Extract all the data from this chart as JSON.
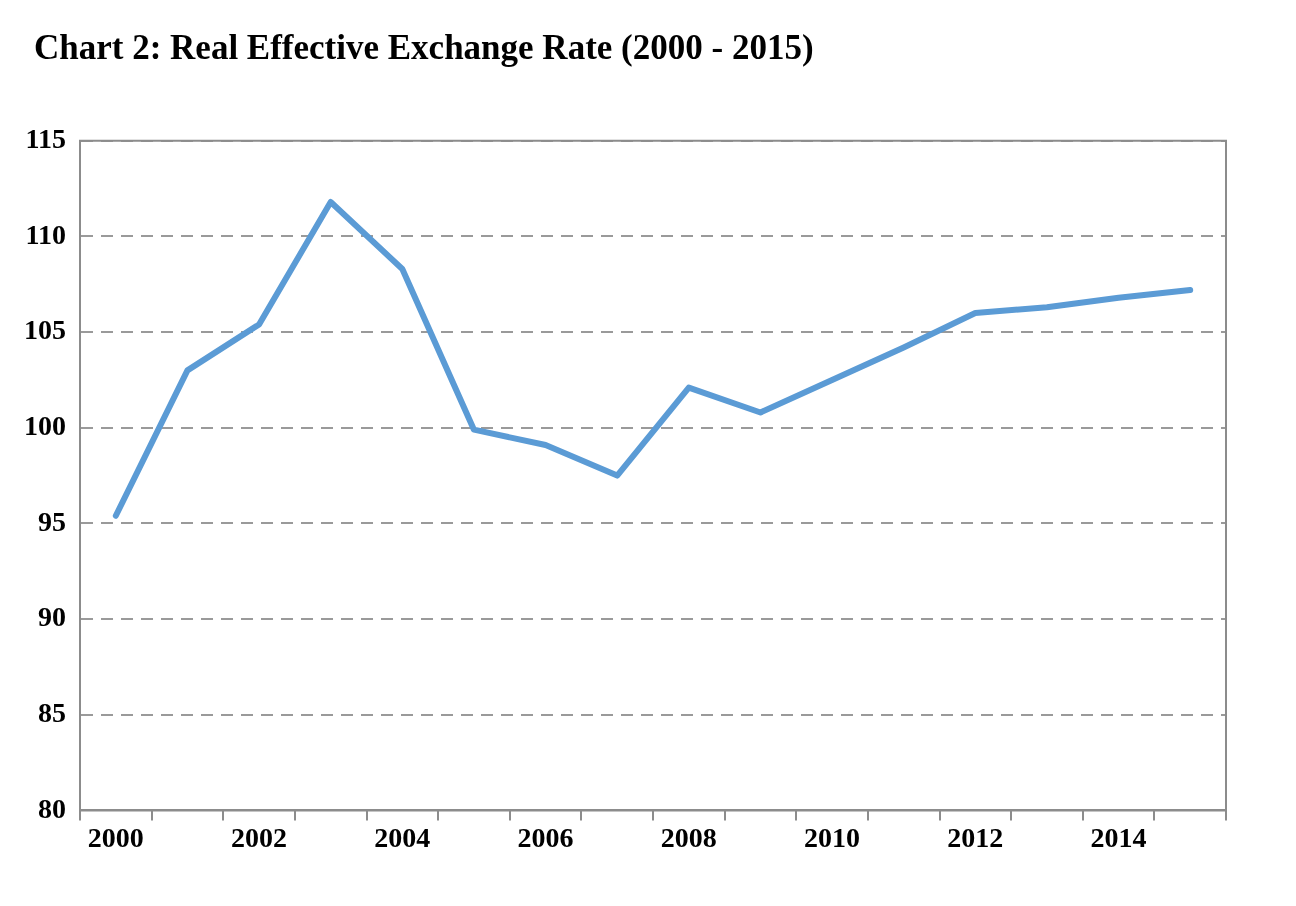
{
  "chart_data": {
    "type": "line",
    "title": "Chart 2: Real Effective Exchange Rate (2000 - 2015)",
    "categories": [
      "2000",
      null,
      "2002",
      null,
      "2004",
      null,
      "2006",
      null,
      "2008",
      null,
      "2010",
      null,
      "2012",
      null,
      "2014",
      null
    ],
    "series": [
      {
        "color": "#5b9bd5",
        "values": [
          95.4,
          103.0,
          105.4,
          111.8,
          108.3,
          99.9,
          99.1,
          97.5,
          102.1,
          100.8,
          102.5,
          104.2,
          106.0,
          106.3,
          106.8,
          107.2
        ]
      }
    ],
    "ylim": [
      80,
      115
    ],
    "yticks": [
      80,
      85,
      90,
      95,
      100,
      105,
      110,
      115
    ],
    "grid": "y",
    "legend": false,
    "marker": "none",
    "line_style": "solid"
  }
}
